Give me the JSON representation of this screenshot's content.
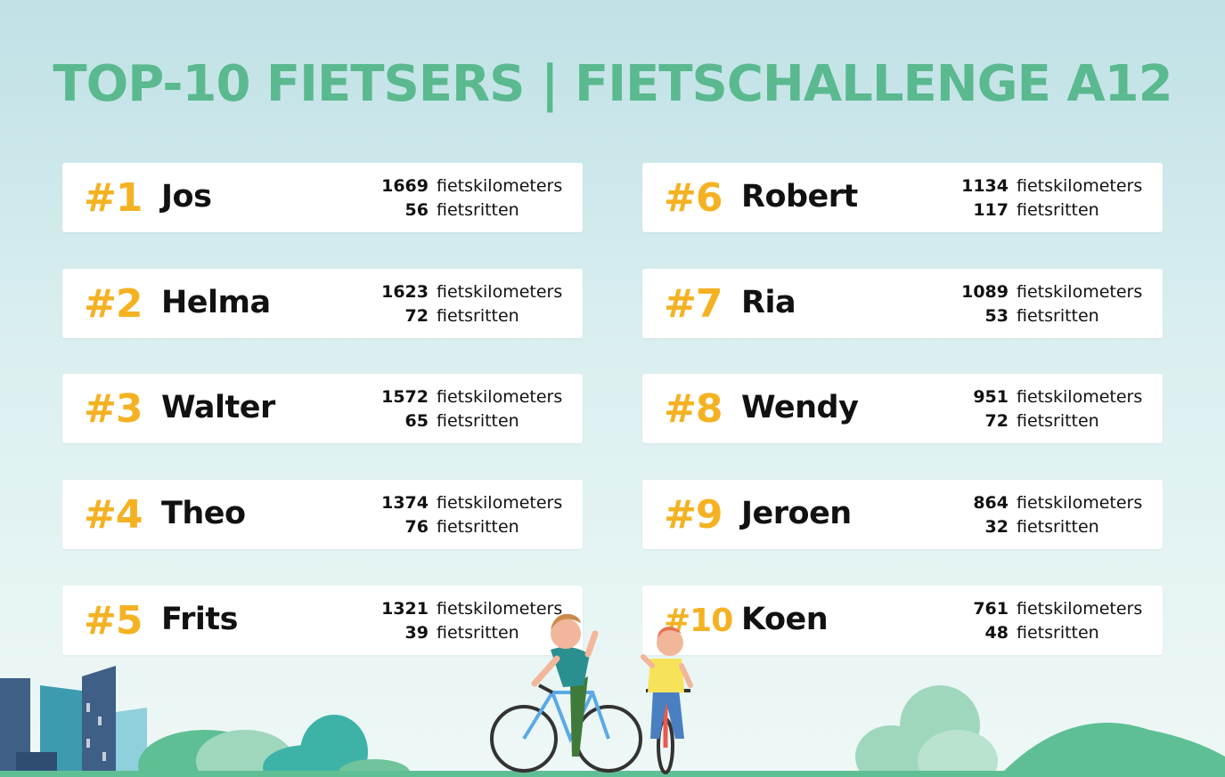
{
  "title": "TOP-10 FIETSERS | FIETSCHALLENGE A12",
  "labels": {
    "km": "fietskilometers",
    "rides": "fietsritten"
  },
  "colors": {
    "title": "#5ab98f",
    "rank": "#f4b223",
    "name": "#111111"
  },
  "riders": [
    {
      "rank": "#1",
      "name": "Jos",
      "km": "1669",
      "rides": "56"
    },
    {
      "rank": "#2",
      "name": "Helma",
      "km": "1623",
      "rides": "72"
    },
    {
      "rank": "#3",
      "name": "Walter",
      "km": "1572",
      "rides": "65"
    },
    {
      "rank": "#4",
      "name": "Theo",
      "km": "1374",
      "rides": "76"
    },
    {
      "rank": "#5",
      "name": "Frits",
      "km": "1321",
      "rides": "39"
    },
    {
      "rank": "#6",
      "name": "Robert",
      "km": "1134",
      "rides": "117"
    },
    {
      "rank": "#7",
      "name": "Ria",
      "km": "1089",
      "rides": "53"
    },
    {
      "rank": "#8",
      "name": "Wendy",
      "km": "951",
      "rides": "72"
    },
    {
      "rank": "#9",
      "name": "Jeroen",
      "km": "864",
      "rides": "32"
    },
    {
      "rank": "#10",
      "name": "Koen",
      "km": "761",
      "rides": "48"
    }
  ]
}
